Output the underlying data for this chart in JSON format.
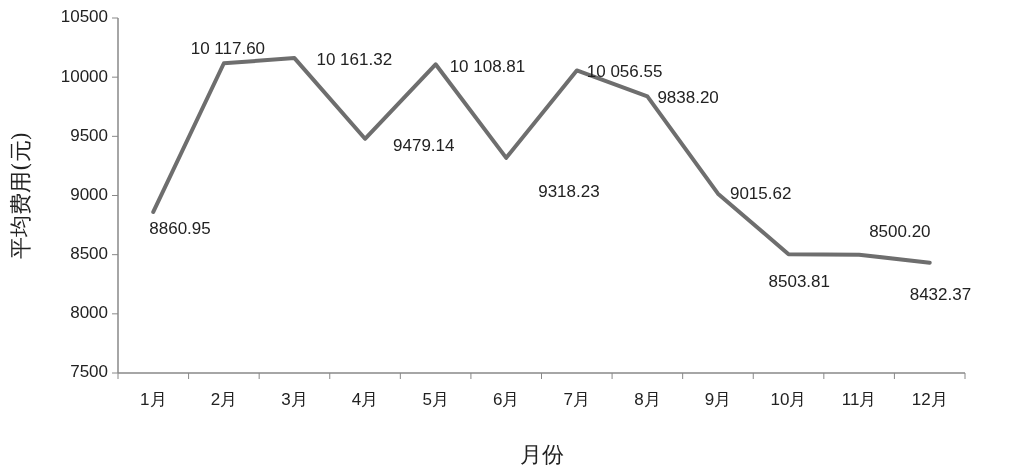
{
  "chart_data": {
    "type": "line",
    "xlabel": "月份",
    "ylabel": "平均费用(元)",
    "categories": [
      "1月",
      "2月",
      "3月",
      "4月",
      "5月",
      "6月",
      "7月",
      "8月",
      "9月",
      "10月",
      "11月",
      "12月"
    ],
    "series": [
      {
        "color": "#6e6e6e",
        "values": [
          8860.95,
          10117.6,
          10161.32,
          9479.14,
          10108.81,
          9318.23,
          10056.55,
          9838.2,
          9015.62,
          8503.81,
          8500.2,
          8432.37
        ],
        "value_labels": [
          "8860.95",
          "10 117.60",
          "10 161.32",
          "9479.14",
          "10 108.81",
          "9318.23",
          "10 056.55",
          "9838.20",
          "9015.62",
          "8503.81",
          "8500.20",
          "8432.37"
        ]
      }
    ],
    "ylim": [
      7500,
      10500
    ],
    "yticks": [
      7500,
      8000,
      8500,
      9000,
      9500,
      10000,
      10500
    ],
    "grid": false,
    "marker": "none",
    "line_style": "solid"
  }
}
